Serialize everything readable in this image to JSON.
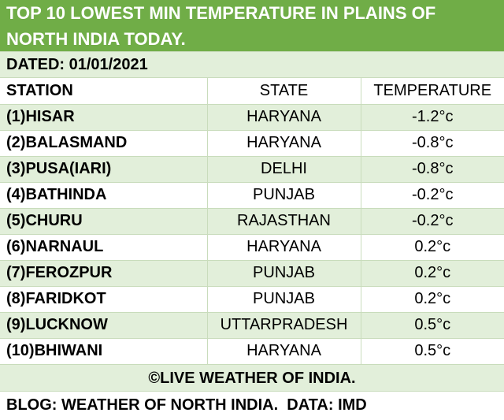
{
  "title": "TOP 10 LOWEST MIN TEMPERATURE IN PLAINS OF NORTH INDIA TODAY.",
  "title_line1": "TOP 10 LOWEST MIN TEMPERATURE IN PLAINS OF",
  "title_line2": "NORTH INDIA TODAY.",
  "dated": "DATED: 01/01/2021",
  "columns": [
    "STATION",
    "STATE",
    "TEMPERATURE"
  ],
  "rows": [
    {
      "station": "(1)HISAR",
      "state": "HARYANA",
      "temperature": "-1.2°c"
    },
    {
      "station": "(2)BALASMAND",
      "state": "HARYANA",
      "temperature": "-0.8°c"
    },
    {
      "station": "(3)PUSA(IARI)",
      "state": "DELHI",
      "temperature": "-0.8°c"
    },
    {
      "station": "(4)BATHINDA",
      "state": "PUNJAB",
      "temperature": "-0.2°c"
    },
    {
      "station": "(5)CHURU",
      "state": "RAJASTHAN",
      "temperature": "-0.2°c"
    },
    {
      "station": "(6)NARNAUL",
      "state": "HARYANA",
      "temperature": "0.2°c"
    },
    {
      "station": "(7)FEROZPUR",
      "state": "PUNJAB",
      "temperature": "0.2°c"
    },
    {
      "station": "(8)FARIDKOT",
      "state": "PUNJAB",
      "temperature": "0.2°c"
    },
    {
      "station": "(9)LUCKNOW",
      "state": "UTTARPRADESH",
      "temperature": "0.5°c"
    },
    {
      "station": "(10)BHIWANI",
      "state": "HARYANA",
      "temperature": "0.5°c"
    }
  ],
  "copyright": "©LIVE WEATHER OF INDIA.",
  "blog": "BLOG: WEATHER OF NORTH INDIA.  DATA: IMD",
  "colors": {
    "title_bg": "#70ad47",
    "band_bg": "#e2efda",
    "title_text": "#ffffff"
  }
}
